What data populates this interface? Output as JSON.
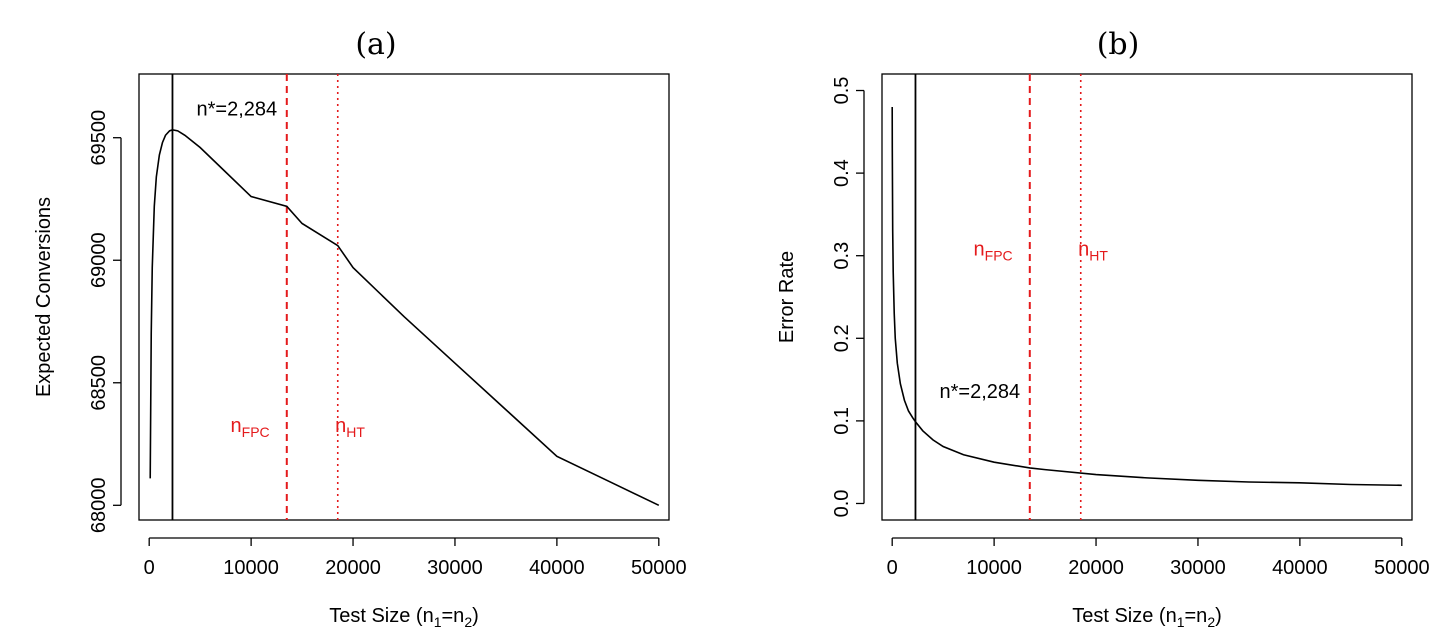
{
  "chart_data": [
    {
      "type": "line",
      "title": "(a)",
      "xlabel": {
        "prefix": "Test Size (n",
        "sub1": "1",
        "mid": "=n",
        "sub2": "2",
        "suffix": ")"
      },
      "ylabel": "Expected Conversions",
      "xlim": [
        -1000,
        51000
      ],
      "ylim": [
        67940,
        69760
      ],
      "xticks": [
        0,
        10000,
        20000,
        30000,
        40000,
        50000
      ],
      "xticklabels": [
        "0",
        "10000",
        "20000",
        "30000",
        "40000",
        "50000"
      ],
      "yticks": [
        68000,
        68500,
        69000,
        69500
      ],
      "yticklabels": [
        "68000",
        "68500",
        "69000",
        "69500"
      ],
      "series": [
        {
          "x": [
            100,
            200,
            300,
            500,
            700,
            1000,
            1300,
            1600,
            2000,
            2284,
            2800,
            3500,
            5000,
            7000,
            10000,
            13500,
            15000,
            18500,
            20000,
            25000,
            30000,
            35000,
            40000,
            45000,
            50000
          ],
          "values": [
            68110,
            68700,
            68970,
            69220,
            69340,
            69430,
            69480,
            69510,
            69528,
            69532,
            69528,
            69510,
            69460,
            69380,
            69260,
            69220,
            69150,
            69060,
            68970,
            68770,
            68580,
            68390,
            68200,
            68100,
            68000
          ]
        }
      ],
      "vlines": [
        {
          "x": 2284,
          "style": "solid",
          "color": "#000000"
        },
        {
          "x": 13500,
          "style": "dashed",
          "color": "#e41a1c"
        },
        {
          "x": 18500,
          "style": "dotted",
          "color": "#e41a1c"
        }
      ],
      "annotations": [
        {
          "text": "n*=2,284",
          "x": 8600,
          "y": 69590,
          "color": "#000000"
        },
        {
          "main": "n",
          "sub": "FPC",
          "x": 9900,
          "y": 68300,
          "color": "#e41a1c"
        },
        {
          "main": "n",
          "sub": "HT",
          "x": 19700,
          "y": 68300,
          "color": "#e41a1c"
        }
      ]
    },
    {
      "type": "line",
      "title": "(b)",
      "xlabel": {
        "prefix": "Test Size (n",
        "sub1": "1",
        "mid": "=n",
        "sub2": "2",
        "suffix": ")"
      },
      "ylabel": "Error Rate",
      "xlim": [
        -1000,
        51000
      ],
      "ylim": [
        -0.02,
        0.52
      ],
      "xticks": [
        0,
        10000,
        20000,
        30000,
        40000,
        50000
      ],
      "xticklabels": [
        "0",
        "10000",
        "20000",
        "30000",
        "40000",
        "50000"
      ],
      "yticks": [
        0.0,
        0.1,
        0.2,
        0.3,
        0.4,
        0.5
      ],
      "yticklabels": [
        "0.0",
        "0.1",
        "0.2",
        "0.3",
        "0.4",
        "0.5"
      ],
      "series": [
        {
          "x": [
            1,
            10,
            50,
            100,
            200,
            300,
            500,
            800,
            1200,
            1600,
            2000,
            2284,
            3000,
            4000,
            5000,
            7000,
            10000,
            13500,
            15000,
            20000,
            25000,
            30000,
            35000,
            40000,
            45000,
            50000
          ],
          "values": [
            0.48,
            0.43,
            0.33,
            0.28,
            0.23,
            0.2,
            0.17,
            0.145,
            0.125,
            0.112,
            0.104,
            0.099,
            0.088,
            0.077,
            0.069,
            0.059,
            0.05,
            0.043,
            0.041,
            0.035,
            0.031,
            0.028,
            0.026,
            0.025,
            0.023,
            0.022
          ]
        }
      ],
      "vlines": [
        {
          "x": 2284,
          "style": "solid",
          "color": "#000000"
        },
        {
          "x": 13500,
          "style": "dashed",
          "color": "#e41a1c"
        },
        {
          "x": 18500,
          "style": "dotted",
          "color": "#e41a1c"
        }
      ],
      "annotations": [
        {
          "text": "n*=2,284",
          "x": 8600,
          "y": 0.128,
          "color": "#000000"
        },
        {
          "main": "n",
          "sub": "FPC",
          "x": 9900,
          "y": 0.3,
          "color": "#e41a1c"
        },
        {
          "main": "n",
          "sub": "HT",
          "x": 19700,
          "y": 0.3,
          "color": "#e41a1c"
        }
      ]
    }
  ]
}
